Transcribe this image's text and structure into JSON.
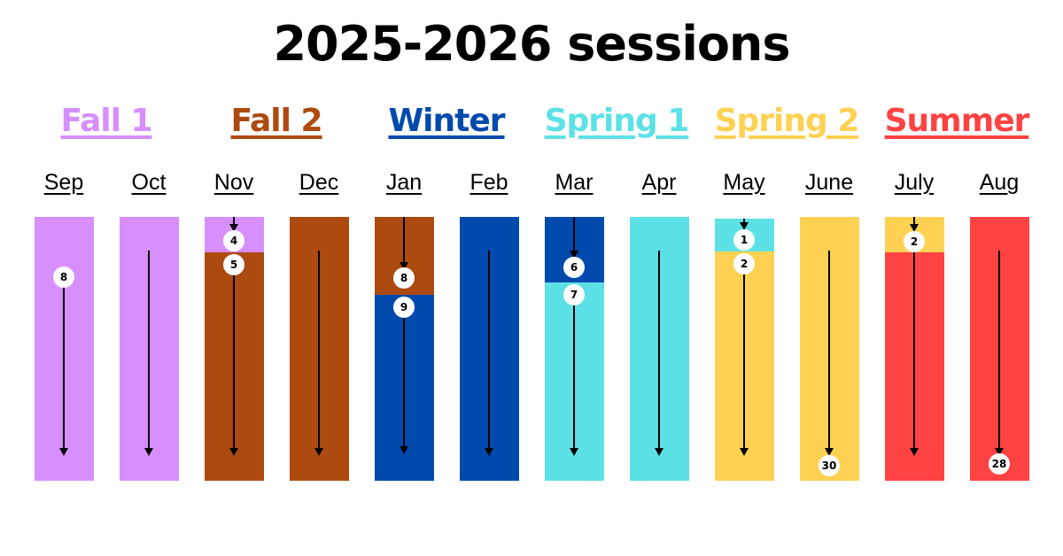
{
  "title": "2025-2026 sessions",
  "colors": {
    "fall1": "#d68ffd",
    "fall2": "#ad4a10",
    "winter": "#004aad",
    "spring1": "#5ce1e6",
    "spring2": "#ffd152",
    "summer": "#ff4242"
  },
  "sessions": [
    {
      "name": "Fall 1",
      "color": "#d68ffd"
    },
    {
      "name": "Fall 2",
      "color": "#ad4a10"
    },
    {
      "name": "Winter",
      "color": "#004aad"
    },
    {
      "name": "Spring 1",
      "color": "#5ce1e6"
    },
    {
      "name": "Spring 2",
      "color": "#ffd152"
    },
    {
      "name": "Summer",
      "color": "#ff4242"
    }
  ],
  "months": [
    {
      "label": "Sep",
      "colors": [
        "#d68ffd"
      ],
      "markers": [
        "8"
      ]
    },
    {
      "label": "Oct",
      "colors": [
        "#d68ffd"
      ],
      "markers": []
    },
    {
      "label": "Nov",
      "colors": [
        "#d68ffd",
        "#ad4a10"
      ],
      "markers": [
        "4",
        "5"
      ]
    },
    {
      "label": "Dec",
      "colors": [
        "#ad4a10"
      ],
      "markers": []
    },
    {
      "label": "Jan",
      "colors": [
        "#ad4a10",
        "#004aad"
      ],
      "markers": [
        "8",
        "9"
      ]
    },
    {
      "label": "Feb",
      "colors": [
        "#004aad"
      ],
      "markers": []
    },
    {
      "label": "Mar",
      "colors": [
        "#004aad",
        "#5ce1e6"
      ],
      "markers": [
        "6",
        "7"
      ]
    },
    {
      "label": "Apr",
      "colors": [
        "#5ce1e6"
      ],
      "markers": []
    },
    {
      "label": "May",
      "colors": [
        "#5ce1e6",
        "#ffd152"
      ],
      "markers": [
        "1",
        "2"
      ]
    },
    {
      "label": "June",
      "colors": [
        "#ffd152"
      ],
      "markers": [
        "30"
      ]
    },
    {
      "label": "July",
      "colors": [
        "#ffd152",
        "#ff4242"
      ],
      "markers": [
        "2"
      ]
    },
    {
      "label": "Aug",
      "colors": [
        "#ff4242"
      ],
      "markers": [
        "28"
      ]
    }
  ]
}
